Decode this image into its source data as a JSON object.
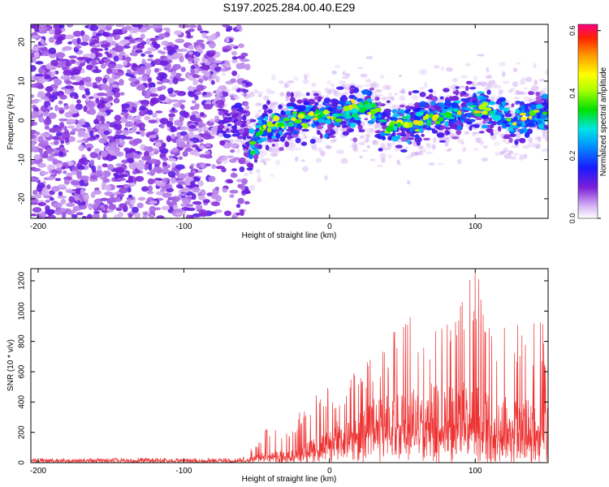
{
  "figure": {
    "title": "S197.2025.284.00.40.E29"
  },
  "chart_data": [
    {
      "type": "heatmap",
      "panel": "spectrogram",
      "xlabel": "Height of straight line (km)",
      "ylabel": "Frequency (Hz)",
      "xlim": [
        -205,
        150
      ],
      "ylim": [
        -25,
        24.5
      ],
      "xticks": [
        -200,
        -100,
        0,
        100
      ],
      "xtick_labels": [
        "-200",
        "-100",
        "0",
        "100"
      ],
      "yticks": [
        -20,
        -10,
        0,
        10,
        20
      ],
      "ytick_labels": [
        "-20",
        "-10",
        "0",
        "10",
        "20"
      ],
      "colorbar": {
        "label": "Normalized spectral amplitude",
        "range": [
          0,
          0.62
        ],
        "ticks": [
          0.0,
          0.2,
          0.4,
          0.6
        ],
        "tick_labels": [
          "0.0",
          "0.2",
          "0.4",
          "0.6"
        ]
      },
      "description_points": [
        {
          "x": -205,
          "noise": "strong",
          "center_hz": 0
        },
        {
          "x": -60,
          "noise": "strong",
          "center_hz": 0
        },
        {
          "x": -55,
          "noise": "none",
          "center_hz": -8
        },
        {
          "x": -45,
          "center_hz": -2
        },
        {
          "x": -20,
          "center_hz": 1
        },
        {
          "x": 0,
          "center_hz": 1
        },
        {
          "x": 25,
          "center_hz": 4
        },
        {
          "x": 40,
          "center_hz": -2
        },
        {
          "x": 60,
          "center_hz": 0
        },
        {
          "x": 100,
          "center_hz": 3
        },
        {
          "x": 130,
          "center_hz": 0
        },
        {
          "x": 150,
          "center_hz": 3
        }
      ]
    },
    {
      "type": "line",
      "panel": "snr",
      "xlabel": "Height of straight line (km)",
      "ylabel": "SNR (10 * v/v)",
      "xlim": [
        -205,
        150
      ],
      "ylim": [
        0,
        1280
      ],
      "xticks": [
        -200,
        -100,
        0,
        100
      ],
      "xtick_labels": [
        "-200",
        "-100",
        "0",
        "100"
      ],
      "yticks": [
        0,
        200,
        400,
        600,
        800,
        1000,
        1200
      ],
      "ytick_labels": [
        "0",
        "200",
        "400",
        "600",
        "800",
        "1000",
        "1200"
      ],
      "color": "#ee3333",
      "envelope": {
        "x": [
          -205,
          -60,
          -50,
          -40,
          -30,
          -20,
          -10,
          0,
          10,
          20,
          30,
          40,
          50,
          60,
          70,
          80,
          90,
          100,
          110,
          120,
          130,
          140,
          150
        ],
        "baseline": [
          15,
          15,
          30,
          60,
          40,
          70,
          100,
          150,
          170,
          200,
          250,
          280,
          300,
          300,
          310,
          320,
          320,
          300,
          280,
          260,
          250,
          240,
          240
        ],
        "peak": [
          30,
          30,
          150,
          270,
          200,
          350,
          470,
          500,
          550,
          620,
          700,
          850,
          1000,
          950,
          960,
          960,
          1080,
          1280,
          1000,
          940,
          940,
          960,
          900
        ]
      }
    }
  ]
}
